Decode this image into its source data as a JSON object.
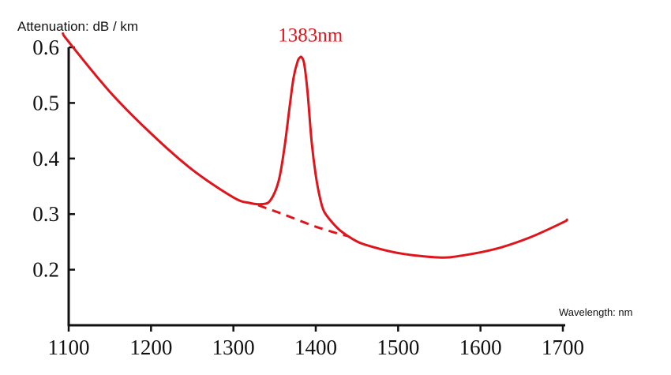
{
  "chart_data": {
    "type": "line",
    "title": "",
    "ylabel": "Attenuation: dB / km",
    "xlabel": "Wavelength: nm",
    "xlim": [
      1100,
      1700
    ],
    "ylim": [
      0.1,
      0.6
    ],
    "x_ticks": [
      1100,
      1200,
      1300,
      1400,
      1500,
      1600,
      1700
    ],
    "y_ticks": [
      0.2,
      0.3,
      0.4,
      0.5,
      0.6
    ],
    "y_tick_labels": [
      "0.2",
      "0.3",
      "0.4",
      "0.5",
      "0.6"
    ],
    "grid": false,
    "line_color": "#e0141b",
    "series": [
      {
        "style": "solid",
        "x": [
          1093,
          1100,
          1150,
          1200,
          1250,
          1300,
          1320,
          1335,
          1345,
          1355,
          1362,
          1368,
          1373,
          1378,
          1381,
          1383,
          1386,
          1390,
          1395,
          1400,
          1405,
          1410,
          1420,
          1430,
          1445,
          1460,
          1500,
          1550,
          1580,
          1620,
          1660,
          1700,
          1705
        ],
        "y": [
          0.625,
          0.61,
          0.52,
          0.445,
          0.38,
          0.33,
          0.32,
          0.318,
          0.325,
          0.36,
          0.42,
          0.49,
          0.545,
          0.575,
          0.582,
          0.582,
          0.57,
          0.52,
          0.43,
          0.37,
          0.33,
          0.305,
          0.285,
          0.27,
          0.255,
          0.245,
          0.23,
          0.222,
          0.226,
          0.238,
          0.258,
          0.285,
          0.29
        ]
      },
      {
        "style": "dashed",
        "x": [
          1330,
          1360,
          1395,
          1420,
          1440
        ],
        "y": [
          0.316,
          0.3,
          0.28,
          0.268,
          0.26
        ]
      }
    ],
    "annotations": [
      {
        "text": "1383nm",
        "x": 1383,
        "y": 0.625
      }
    ]
  }
}
